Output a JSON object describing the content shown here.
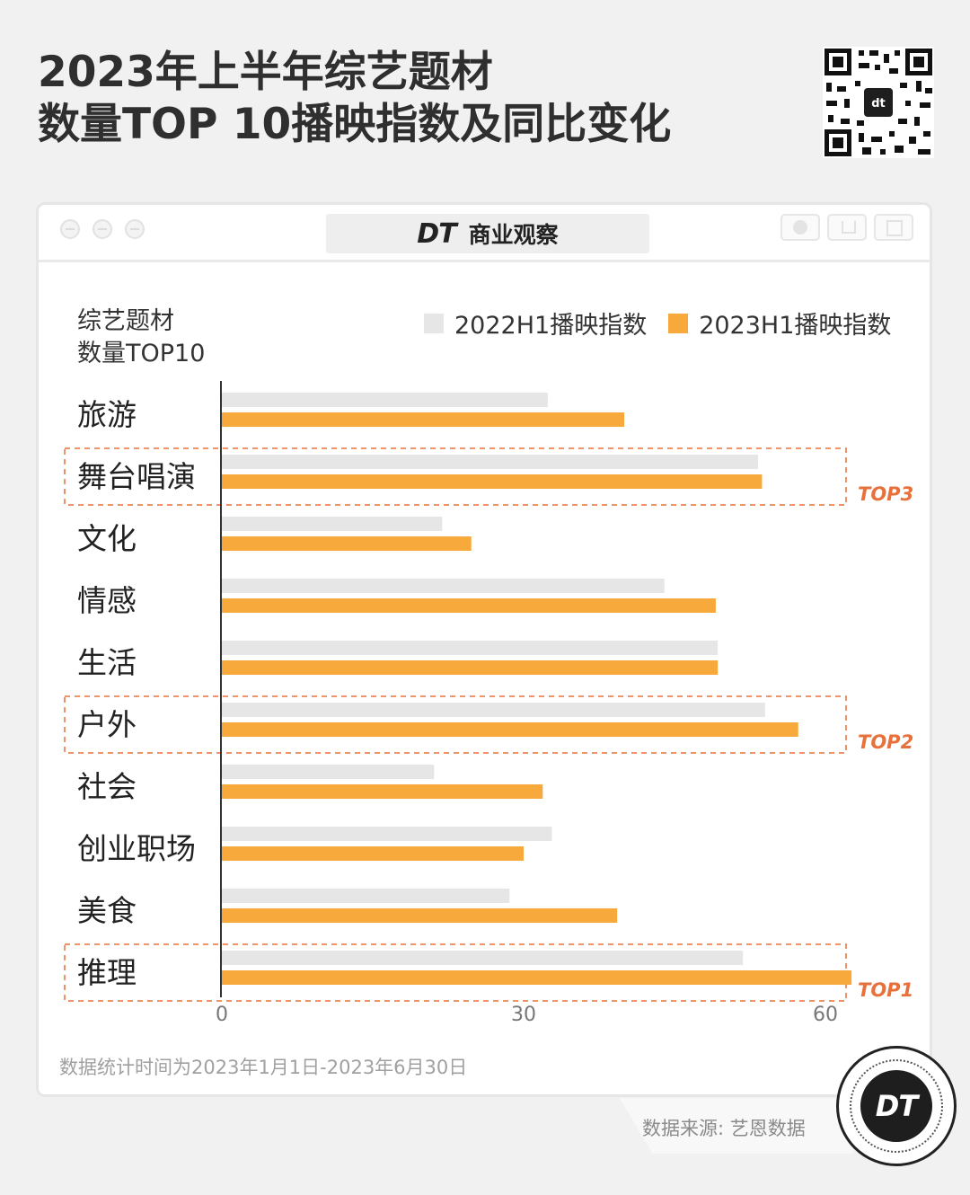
{
  "header": {
    "title_line1": "2023年上半年综艺题材",
    "title_line2": "数量TOP 10播映指数及同比变化"
  },
  "window": {
    "brand_mark": "DT",
    "brand_text": "商业观察"
  },
  "corner_label": {
    "line1": "综艺题材",
    "line2": "数量TOP10"
  },
  "footer": {
    "note": "数据统计时间为2023年1月1日-2023年6月30日",
    "source": "数据来源: 艺恩数据",
    "badge_text": "DT"
  },
  "colors": {
    "series_2022": "#e6e6e6",
    "series_2023": "#f7a93b",
    "highlight": "#e8703a"
  },
  "chart_data": {
    "type": "bar",
    "orientation": "horizontal",
    "categories": [
      "旅游",
      "舞台唱演",
      "文化",
      "情感",
      "生活",
      "户外",
      "社会",
      "创业职场",
      "美食",
      "推理"
    ],
    "series": [
      {
        "name": "2022H1播映指数",
        "values": [
          32.4,
          53.3,
          21.9,
          44.0,
          49.3,
          54.0,
          21.1,
          32.8,
          28.6,
          51.8
        ]
      },
      {
        "name": "2023H1播映指数",
        "values": [
          40.0,
          53.7,
          24.8,
          49.1,
          49.3,
          57.3,
          31.9,
          30.0,
          39.3,
          62.6
        ]
      }
    ],
    "xlim": [
      0,
      62.6
    ],
    "xticks": [
      0,
      30,
      60
    ],
    "highlights": [
      {
        "category": "舞台唱演",
        "label": "TOP3"
      },
      {
        "category": "户外",
        "label": "TOP2"
      },
      {
        "category": "推理",
        "label": "TOP1"
      }
    ],
    "legend_position": "top-right",
    "grid": false
  }
}
